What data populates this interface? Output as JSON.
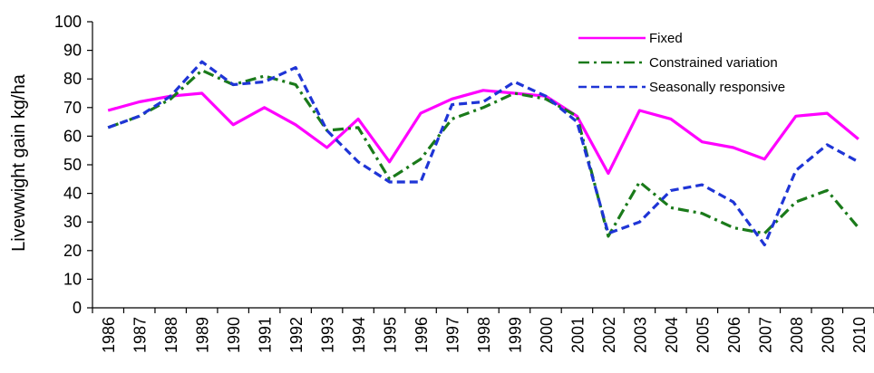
{
  "chart_data": {
    "type": "line",
    "title": "",
    "xlabel": "",
    "ylabel": "Livewwight gain kg/ha",
    "ylim": [
      0,
      100
    ],
    "yticks": [
      0,
      10,
      20,
      30,
      40,
      50,
      60,
      70,
      80,
      90,
      100
    ],
    "grid": false,
    "legend_position": "top-right",
    "categories": [
      "1986",
      "1987",
      "1988",
      "1989",
      "1990",
      "1991",
      "1992",
      "1993",
      "1994",
      "1995",
      "1996",
      "1997",
      "1998",
      "1999",
      "2000",
      "2001",
      "2002",
      "2003",
      "2004",
      "2005",
      "2006",
      "2007",
      "2008",
      "2009",
      "2010"
    ],
    "series": [
      {
        "name": "Fixed",
        "color": "#ff00ff",
        "dash": "solid",
        "values": [
          69,
          72,
          74,
          75,
          64,
          70,
          64,
          56,
          66,
          51,
          68,
          73,
          76,
          75,
          74,
          67,
          47,
          69,
          66,
          58,
          56,
          52,
          67,
          68,
          59
        ]
      },
      {
        "name": "Constrained  variation",
        "color": "#1a7a1a",
        "dash": "dashdot",
        "values": [
          63,
          67,
          73,
          83,
          78,
          81,
          78,
          62,
          63,
          45,
          52,
          66,
          70,
          75,
          73,
          67,
          25,
          44,
          35,
          33,
          28,
          26,
          37,
          41,
          28
        ]
      },
      {
        "name": "Seasonally responsive",
        "color": "#1f35d6",
        "dash": "dashed",
        "values": [
          63,
          67,
          74,
          86,
          78,
          79,
          84,
          62,
          51,
          44,
          44,
          71,
          72,
          79,
          74,
          65,
          26,
          30,
          41,
          43,
          37,
          22,
          48,
          57,
          51
        ]
      }
    ]
  }
}
